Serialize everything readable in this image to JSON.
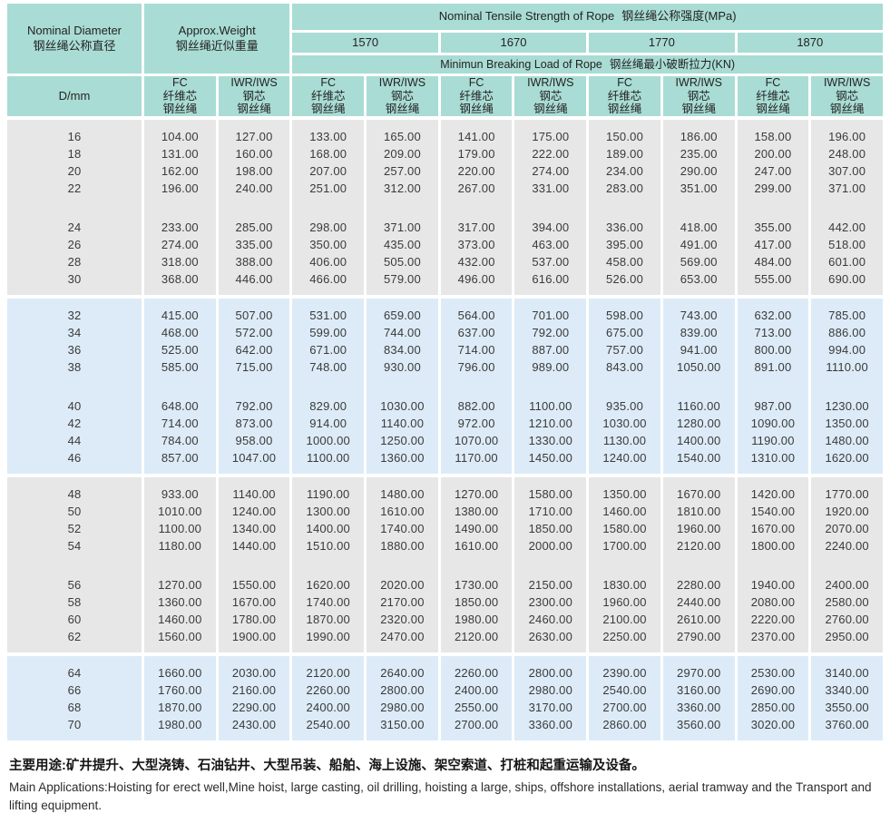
{
  "colors": {
    "header_bg": "#a9dcd4",
    "block_gray": "#e7e7e7",
    "block_blue": "#dcebf7",
    "text": "#3a3a3a"
  },
  "header": {
    "diameter": {
      "en": "Nominal Diameter",
      "zh": "钢丝绳公称直径"
    },
    "weight": {
      "en": "Approx.Weight",
      "zh": "钢丝绳近似重量"
    },
    "tensile_strength": {
      "en": "Nominal Tensile Strength of Rope",
      "zh": "钢丝绳公称强度(MPa)"
    },
    "strength_grades": [
      "1570",
      "1670",
      "1770",
      "1870"
    ],
    "breaking_load": {
      "en": "Minimun Breaking Load of Rope",
      "zh": "钢丝绳最小破断拉力(KN)"
    },
    "diameter_unit": "D/mm",
    "fc_column": {
      "line1": "FC",
      "line2": "纤维芯",
      "line3": "钢丝绳"
    },
    "iwr_column": {
      "line1": "IWR/IWS",
      "line2": "钢芯",
      "line3": "钢丝绳"
    }
  },
  "body_blocks": [
    {
      "tone": "gray",
      "groups": [
        [
          {
            "d": "16",
            "values": [
              "104.00",
              "127.00",
              "133.00",
              "165.00",
              "141.00",
              "175.00",
              "150.00",
              "186.00",
              "158.00",
              "196.00"
            ]
          },
          {
            "d": "18",
            "values": [
              "131.00",
              "160.00",
              "168.00",
              "209.00",
              "179.00",
              "222.00",
              "189.00",
              "235.00",
              "200.00",
              "248.00"
            ]
          },
          {
            "d": "20",
            "values": [
              "162.00",
              "198.00",
              "207.00",
              "257.00",
              "220.00",
              "274.00",
              "234.00",
              "290.00",
              "247.00",
              "307.00"
            ]
          },
          {
            "d": "22",
            "values": [
              "196.00",
              "240.00",
              "251.00",
              "312.00",
              "267.00",
              "331.00",
              "283.00",
              "351.00",
              "299.00",
              "371.00"
            ]
          }
        ],
        [
          {
            "d": "24",
            "values": [
              "233.00",
              "285.00",
              "298.00",
              "371.00",
              "317.00",
              "394.00",
              "336.00",
              "418.00",
              "355.00",
              "442.00"
            ]
          },
          {
            "d": "26",
            "values": [
              "274.00",
              "335.00",
              "350.00",
              "435.00",
              "373.00",
              "463.00",
              "395.00",
              "491.00",
              "417.00",
              "518.00"
            ]
          },
          {
            "d": "28",
            "values": [
              "318.00",
              "388.00",
              "406.00",
              "505.00",
              "432.00",
              "537.00",
              "458.00",
              "569.00",
              "484.00",
              "601.00"
            ]
          },
          {
            "d": "30",
            "values": [
              "368.00",
              "446.00",
              "466.00",
              "579.00",
              "496.00",
              "616.00",
              "526.00",
              "653.00",
              "555.00",
              "690.00"
            ]
          }
        ]
      ]
    },
    {
      "tone": "blue",
      "groups": [
        [
          {
            "d": "32",
            "values": [
              "415.00",
              "507.00",
              "531.00",
              "659.00",
              "564.00",
              "701.00",
              "598.00",
              "743.00",
              "632.00",
              "785.00"
            ]
          },
          {
            "d": "34",
            "values": [
              "468.00",
              "572.00",
              "599.00",
              "744.00",
              "637.00",
              "792.00",
              "675.00",
              "839.00",
              "713.00",
              "886.00"
            ]
          },
          {
            "d": "36",
            "values": [
              "525.00",
              "642.00",
              "671.00",
              "834.00",
              "714.00",
              "887.00",
              "757.00",
              "941.00",
              "800.00",
              "994.00"
            ]
          },
          {
            "d": "38",
            "values": [
              "585.00",
              "715.00",
              "748.00",
              "930.00",
              "796.00",
              "989.00",
              "843.00",
              "1050.00",
              "891.00",
              "1110.00"
            ]
          }
        ],
        [
          {
            "d": "40",
            "values": [
              "648.00",
              "792.00",
              "829.00",
              "1030.00",
              "882.00",
              "1100.00",
              "935.00",
              "1160.00",
              "987.00",
              "1230.00"
            ]
          },
          {
            "d": "42",
            "values": [
              "714.00",
              "873.00",
              "914.00",
              "1140.00",
              "972.00",
              "1210.00",
              "1030.00",
              "1280.00",
              "1090.00",
              "1350.00"
            ]
          },
          {
            "d": "44",
            "values": [
              "784.00",
              "958.00",
              "1000.00",
              "1250.00",
              "1070.00",
              "1330.00",
              "1130.00",
              "1400.00",
              "1190.00",
              "1480.00"
            ]
          },
          {
            "d": "46",
            "values": [
              "857.00",
              "1047.00",
              "1100.00",
              "1360.00",
              "1170.00",
              "1450.00",
              "1240.00",
              "1540.00",
              "1310.00",
              "1620.00"
            ]
          }
        ]
      ]
    },
    {
      "tone": "gray",
      "groups": [
        [
          {
            "d": "48",
            "values": [
              "933.00",
              "1140.00",
              "1190.00",
              "1480.00",
              "1270.00",
              "1580.00",
              "1350.00",
              "1670.00",
              "1420.00",
              "1770.00"
            ]
          },
          {
            "d": "50",
            "values": [
              "1010.00",
              "1240.00",
              "1300.00",
              "1610.00",
              "1380.00",
              "1710.00",
              "1460.00",
              "1810.00",
              "1540.00",
              "1920.00"
            ]
          },
          {
            "d": "52",
            "values": [
              "1100.00",
              "1340.00",
              "1400.00",
              "1740.00",
              "1490.00",
              "1850.00",
              "1580.00",
              "1960.00",
              "1670.00",
              "2070.00"
            ]
          },
          {
            "d": "54",
            "values": [
              "1180.00",
              "1440.00",
              "1510.00",
              "1880.00",
              "1610.00",
              "2000.00",
              "1700.00",
              "2120.00",
              "1800.00",
              "2240.00"
            ]
          }
        ],
        [
          {
            "d": "56",
            "values": [
              "1270.00",
              "1550.00",
              "1620.00",
              "2020.00",
              "1730.00",
              "2150.00",
              "1830.00",
              "2280.00",
              "1940.00",
              "2400.00"
            ]
          },
          {
            "d": "58",
            "values": [
              "1360.00",
              "1670.00",
              "1740.00",
              "2170.00",
              "1850.00",
              "2300.00",
              "1960.00",
              "2440.00",
              "2080.00",
              "2580.00"
            ]
          },
          {
            "d": "60",
            "values": [
              "1460.00",
              "1780.00",
              "1870.00",
              "2320.00",
              "1980.00",
              "2460.00",
              "2100.00",
              "2610.00",
              "2220.00",
              "2760.00"
            ]
          },
          {
            "d": "62",
            "values": [
              "1560.00",
              "1900.00",
              "1990.00",
              "2470.00",
              "2120.00",
              "2630.00",
              "2250.00",
              "2790.00",
              "2370.00",
              "2950.00"
            ]
          }
        ]
      ]
    },
    {
      "tone": "blue",
      "groups": [
        [
          {
            "d": "64",
            "values": [
              "1660.00",
              "2030.00",
              "2120.00",
              "2640.00",
              "2260.00",
              "2800.00",
              "2390.00",
              "2970.00",
              "2530.00",
              "3140.00"
            ]
          },
          {
            "d": "66",
            "values": [
              "1760.00",
              "2160.00",
              "2260.00",
              "2800.00",
              "2400.00",
              "2980.00",
              "2540.00",
              "3160.00",
              "2690.00",
              "3340.00"
            ]
          },
          {
            "d": "68",
            "values": [
              "1870.00",
              "2290.00",
              "2400.00",
              "2980.00",
              "2550.00",
              "3170.00",
              "2700.00",
              "3360.00",
              "2850.00",
              "3550.00"
            ]
          },
          {
            "d": "70",
            "values": [
              "1980.00",
              "2430.00",
              "2540.00",
              "3150.00",
              "2700.00",
              "3360.00",
              "2860.00",
              "3560.00",
              "3020.00",
              "3760.00"
            ]
          }
        ]
      ]
    }
  ],
  "footer": {
    "zh": "主要用途:矿井提升、大型浇铸、石油钻井、大型吊装、船舶、海上设施、架空索道、打桩和起重运输及设备。",
    "en": "Main Applications:Hoisting for erect well,Mine hoist, large casting, oil drilling, hoisting a large, ships, offshore installations, aerial tramway and the Transport and lifting equipment."
  }
}
